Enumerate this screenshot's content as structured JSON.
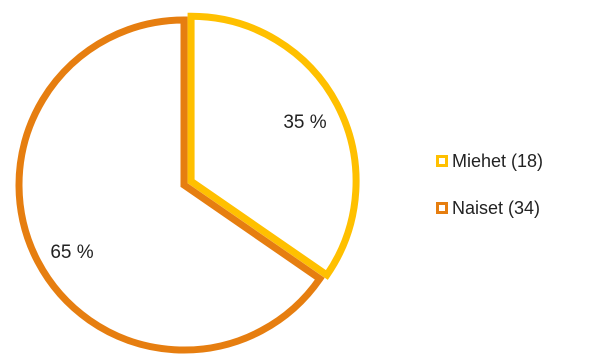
{
  "chart_data": {
    "type": "pie",
    "slices": [
      {
        "name": "Miehet",
        "value": 18,
        "percent_label": "35 %",
        "legend_label": "Miehet (18)",
        "color": "#FFC000"
      },
      {
        "name": "Naiset",
        "value": 34,
        "percent_label": "65 %",
        "legend_label": "Naiset (34)",
        "color": "#E67E10"
      }
    ],
    "start": "12 o'clock",
    "direction": "clockwise",
    "style": "outlined slices, white fill",
    "exploded_first_slice": true,
    "legend_position": "right"
  }
}
